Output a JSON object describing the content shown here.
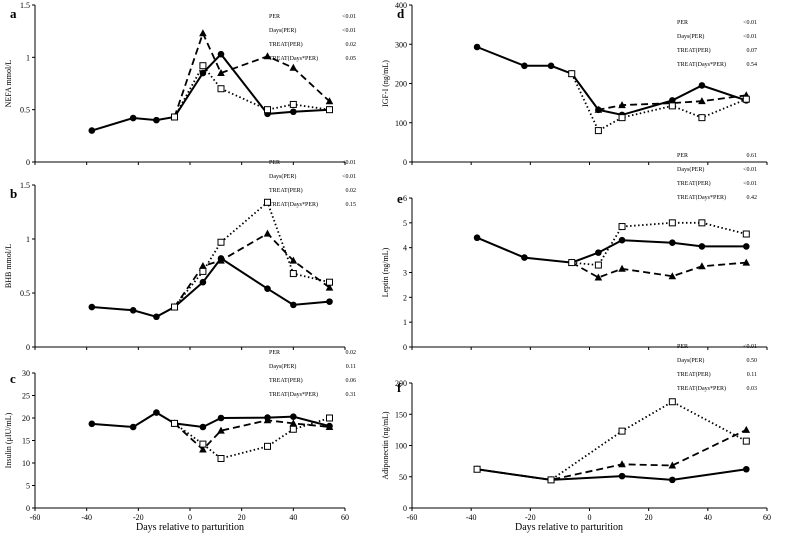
{
  "shared_xlabel": "Days relative to parturition",
  "chart_data": [
    {
      "type": "line",
      "panel": "a",
      "ylabel": "NEFA mmol/L",
      "xlim": [
        -60,
        60
      ],
      "ylim": [
        0,
        1.5
      ],
      "xticks": [
        "-60",
        "-40",
        "-20",
        "0",
        "20",
        "40",
        "60"
      ],
      "yticks": [
        "0",
        "0.5",
        "1",
        "1.5"
      ],
      "show_xticklabels": false,
      "stats": [
        [
          "PER",
          "<0.01"
        ],
        [
          "Days(PER)",
          "<0.01"
        ],
        [
          "TREAT(PER)",
          "0.02"
        ],
        [
          "TREAT(Days*PER)",
          "0.05"
        ]
      ],
      "series": [
        {
          "style": "solid",
          "marker": "circle",
          "x": [
            -38,
            -22,
            -13,
            -6,
            5,
            12,
            30,
            40,
            54
          ],
          "y": [
            0.3,
            0.42,
            0.4,
            0.43,
            0.85,
            1.03,
            0.46,
            0.48,
            0.5
          ]
        },
        {
          "style": "dashed",
          "marker": "triangle",
          "x": [
            -6,
            5,
            12,
            30,
            40,
            54
          ],
          "y": [
            0.43,
            1.23,
            0.85,
            1.01,
            0.9,
            0.58
          ]
        },
        {
          "style": "dotted",
          "marker": "square",
          "x": [
            -6,
            5,
            12,
            30,
            40,
            54
          ],
          "y": [
            0.43,
            0.92,
            0.7,
            0.5,
            0.55,
            0.5
          ]
        }
      ]
    },
    {
      "type": "line",
      "panel": "b",
      "ylabel": "BHB mmol/L",
      "xlim": [
        -60,
        60
      ],
      "ylim": [
        0,
        1.5
      ],
      "xticks": [
        "-60",
        "-40",
        "-20",
        "0",
        "20",
        "40",
        "60"
      ],
      "yticks": [
        "0",
        "0.5",
        "1",
        "1.5"
      ],
      "show_xticklabels": false,
      "stats": [
        [
          "PER",
          "<0.01"
        ],
        [
          "Days(PER)",
          "<0.01"
        ],
        [
          "TREAT(PER)",
          "0.02"
        ],
        [
          "TREAT(Days*PER)",
          "0.15"
        ]
      ],
      "series": [
        {
          "style": "solid",
          "marker": "circle",
          "x": [
            -38,
            -22,
            -13,
            -6,
            5,
            12,
            30,
            40,
            54
          ],
          "y": [
            0.37,
            0.34,
            0.28,
            0.37,
            0.6,
            0.82,
            0.54,
            0.39,
            0.42
          ]
        },
        {
          "style": "dashed",
          "marker": "triangle",
          "x": [
            -6,
            5,
            12,
            30,
            40,
            54
          ],
          "y": [
            0.37,
            0.75,
            0.8,
            1.05,
            0.8,
            0.55
          ]
        },
        {
          "style": "dotted",
          "marker": "square",
          "x": [
            -6,
            5,
            12,
            30,
            40,
            54
          ],
          "y": [
            0.37,
            0.7,
            0.97,
            1.34,
            0.68,
            0.6
          ]
        }
      ]
    },
    {
      "type": "line",
      "panel": "c",
      "ylabel": "Insulin (μIU/mL)",
      "xlim": [
        -60,
        60
      ],
      "ylim": [
        0,
        30
      ],
      "xticks": [
        "-60",
        "-40",
        "-20",
        "0",
        "20",
        "40",
        "60"
      ],
      "yticks": [
        "0",
        "5",
        "10",
        "15",
        "20",
        "25",
        "30"
      ],
      "show_xticklabels": true,
      "stats": [
        [
          "PER",
          "0.02"
        ],
        [
          "Days(PER)",
          "0.11"
        ],
        [
          "TREAT(PER)",
          "0.06"
        ],
        [
          "TREAT(Days*PER)",
          "0.31"
        ]
      ],
      "series": [
        {
          "style": "solid",
          "marker": "circle",
          "x": [
            -38,
            -22,
            -13,
            -6,
            5,
            12,
            30,
            40,
            54
          ],
          "y": [
            18.7,
            18,
            21.2,
            18.8,
            18,
            20,
            20.1,
            20.3,
            18.2
          ]
        },
        {
          "style": "dashed",
          "marker": "triangle",
          "x": [
            -6,
            5,
            12,
            30,
            40,
            54
          ],
          "y": [
            18.8,
            13,
            17.2,
            19.5,
            18.8,
            18
          ]
        },
        {
          "style": "dotted",
          "marker": "square",
          "x": [
            -6,
            5,
            12,
            30,
            40,
            54
          ],
          "y": [
            18.8,
            14.2,
            11,
            13.7,
            17.5,
            20
          ]
        }
      ]
    },
    {
      "type": "line",
      "panel": "d",
      "ylabel": "IGF-I (ng/mL)",
      "xlim": [
        -60,
        60
      ],
      "ylim": [
        0,
        400
      ],
      "xticks": [
        "-60",
        "-40",
        "-20",
        "0",
        "20",
        "40",
        "60"
      ],
      "yticks": [
        "0",
        "100",
        "200",
        "300",
        "400"
      ],
      "show_xticklabels": false,
      "stats": [
        [
          "PER",
          "<0.01"
        ],
        [
          "Days(PER)",
          "<0.01"
        ],
        [
          "TREAT(PER)",
          "0.07"
        ],
        [
          "TREAT(Days*PER)",
          "0.54"
        ]
      ],
      "series": [
        {
          "style": "solid",
          "marker": "circle",
          "x": [
            -38,
            -22,
            -13,
            -6,
            3,
            11,
            28,
            38,
            53
          ],
          "y": [
            293,
            245,
            245,
            225,
            133,
            120,
            157,
            195,
            157
          ]
        },
        {
          "style": "dashed",
          "marker": "triangle",
          "x": [
            -6,
            3,
            11,
            28,
            38,
            53
          ],
          "y": [
            225,
            133,
            145,
            150,
            155,
            170
          ]
        },
        {
          "style": "dotted",
          "marker": "square",
          "x": [
            -6,
            3,
            11,
            28,
            38,
            53
          ],
          "y": [
            225,
            80,
            113,
            143,
            113,
            160
          ]
        }
      ]
    },
    {
      "type": "line",
      "panel": "e",
      "ylabel": "Leptin (ng/mL)",
      "xlim": [
        -60,
        60
      ],
      "ylim": [
        0,
        6
      ],
      "xticks": [
        "-60",
        "-40",
        "-20",
        "0",
        "20",
        "40",
        "60"
      ],
      "yticks": [
        "0",
        "1",
        "2",
        "3",
        "4",
        "5",
        "6"
      ],
      "show_xticklabels": false,
      "stats": [
        [
          "PER",
          "0.61"
        ],
        [
          "Days(PER)",
          "<0.01"
        ],
        [
          "TREAT(PER)",
          "<0.01"
        ],
        [
          "TREAT(Days*PER)",
          "0.42"
        ]
      ],
      "series": [
        {
          "style": "solid",
          "marker": "circle",
          "x": [
            -38,
            -22,
            -6,
            3,
            11,
            28,
            38,
            53
          ],
          "y": [
            4.4,
            3.6,
            3.4,
            3.8,
            4.3,
            4.2,
            4.05,
            4.05
          ]
        },
        {
          "style": "dashed",
          "marker": "triangle",
          "x": [
            -6,
            3,
            11,
            28,
            38,
            53
          ],
          "y": [
            3.4,
            2.8,
            3.15,
            2.85,
            3.25,
            3.4
          ]
        },
        {
          "style": "dotted",
          "marker": "square",
          "x": [
            -6,
            3,
            11,
            28,
            38,
            53
          ],
          "y": [
            3.4,
            3.3,
            4.85,
            5.0,
            5.0,
            4.55
          ]
        }
      ]
    },
    {
      "type": "line",
      "panel": "f",
      "ylabel": "Adiponectin (ng/mL)",
      "xlim": [
        -60,
        60
      ],
      "ylim": [
        0,
        200
      ],
      "xticks": [
        "-60",
        "-40",
        "-20",
        "0",
        "20",
        "40",
        "60"
      ],
      "yticks": [
        "0",
        "50",
        "100",
        "150",
        "200"
      ],
      "show_xticklabels": true,
      "stats": [
        [
          "PER",
          "<0.01"
        ],
        [
          "Days(PER)",
          "0.50"
        ],
        [
          "TREAT(PER)",
          "0.11"
        ],
        [
          "TREAT(Days*PER)",
          "0.03"
        ]
      ],
      "series": [
        {
          "style": "solid",
          "marker": "circle",
          "x": [
            -38,
            -13,
            11,
            28,
            53
          ],
          "y": [
            62,
            45,
            51,
            45,
            62
          ]
        },
        {
          "style": "dashed",
          "marker": "triangle",
          "x": [
            -38,
            -13,
            11,
            28,
            53
          ],
          "y": [
            62,
            45,
            70,
            68,
            125
          ]
        },
        {
          "style": "dotted",
          "marker": "square",
          "x": [
            -38,
            -13,
            11,
            28,
            53
          ],
          "y": [
            62,
            45,
            123,
            170,
            107
          ]
        }
      ]
    }
  ]
}
